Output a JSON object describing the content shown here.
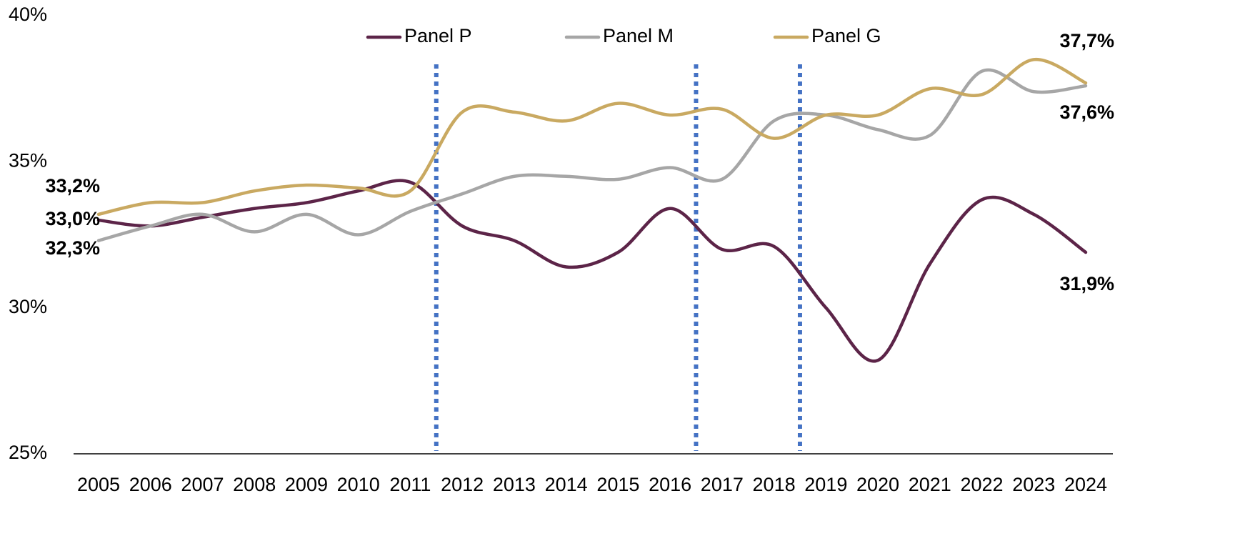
{
  "chart_data": {
    "type": "line",
    "x": [
      2005,
      2006,
      2007,
      2008,
      2009,
      2010,
      2011,
      2012,
      2013,
      2014,
      2015,
      2016,
      2017,
      2018,
      2019,
      2020,
      2021,
      2022,
      2023,
      2024
    ],
    "series": [
      {
        "name": "Panel P",
        "color": "#5c2448",
        "values": [
          33.0,
          32.8,
          33.1,
          33.4,
          33.6,
          34.0,
          34.3,
          32.8,
          32.3,
          31.4,
          31.9,
          33.4,
          32.0,
          32.1,
          30.0,
          28.2,
          31.5,
          33.7,
          33.2,
          31.9
        ],
        "value_labels": [
          "33,0%",
          null,
          null,
          null,
          null,
          null,
          null,
          null,
          null,
          null,
          null,
          null,
          null,
          null,
          null,
          null,
          null,
          null,
          null,
          "31,9%"
        ]
      },
      {
        "name": "Panel M",
        "color": "#a6a6a6",
        "values": [
          32.3,
          32.8,
          33.2,
          32.6,
          33.2,
          32.5,
          33.3,
          33.9,
          34.5,
          34.5,
          34.4,
          34.8,
          34.4,
          36.4,
          36.6,
          36.1,
          35.9,
          38.1,
          37.4,
          37.6
        ],
        "value_labels": [
          "32,3%",
          null,
          null,
          null,
          null,
          null,
          null,
          null,
          null,
          null,
          null,
          null,
          null,
          null,
          null,
          null,
          null,
          null,
          null,
          "37,6%"
        ]
      },
      {
        "name": "Panel G",
        "color": "#c9a961",
        "values": [
          33.2,
          33.6,
          33.6,
          34.0,
          34.2,
          34.1,
          34.0,
          36.7,
          36.7,
          36.4,
          37.0,
          36.6,
          36.8,
          35.8,
          36.6,
          36.6,
          37.5,
          37.3,
          38.5,
          37.7
        ],
        "value_labels": [
          "33,2%",
          null,
          null,
          null,
          null,
          null,
          null,
          null,
          null,
          null,
          null,
          null,
          null,
          null,
          null,
          null,
          null,
          null,
          null,
          "37,7%"
        ]
      }
    ],
    "ylim": [
      25,
      40
    ],
    "yticks": [
      {
        "value": 25,
        "label": "25%"
      },
      {
        "value": 30,
        "label": "30%"
      },
      {
        "value": 35,
        "label": "35%"
      },
      {
        "value": 40,
        "label": "40%"
      }
    ],
    "xlim": [
      2005,
      2024
    ],
    "xticks": [
      2005,
      2006,
      2007,
      2008,
      2009,
      2010,
      2011,
      2012,
      2013,
      2014,
      2015,
      2016,
      2017,
      2018,
      2019,
      2020,
      2021,
      2022,
      2023,
      2024
    ],
    "vlines": [
      2011.5,
      2016.5,
      2018.5
    ],
    "vline_color": "#4472c4",
    "grid": false,
    "legend": "top"
  }
}
